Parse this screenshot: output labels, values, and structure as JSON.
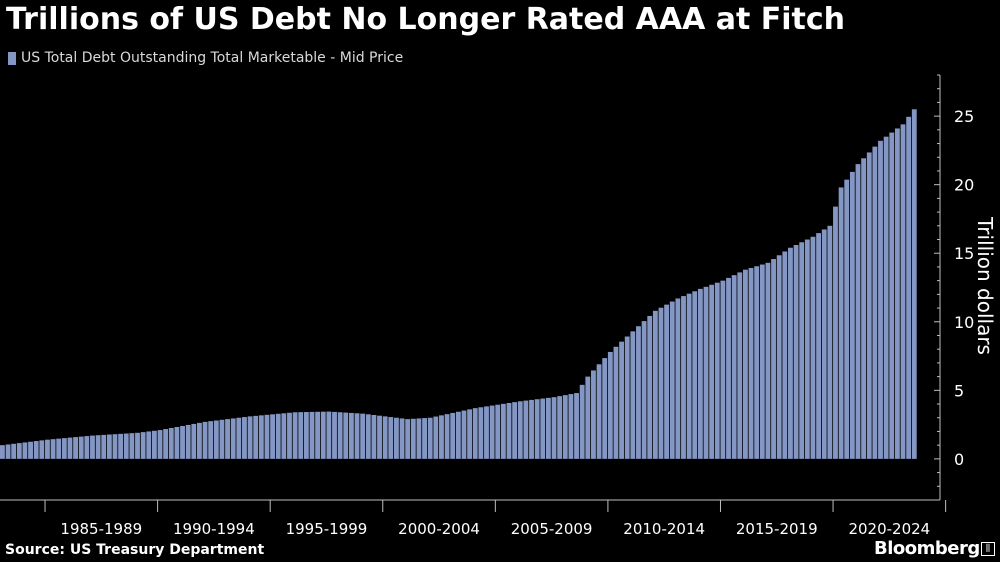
{
  "title": "Trillions of US Debt No Longer Rated AAA at Fitch",
  "source": "Source: US Treasury Department",
  "brand": "Bloomberg",
  "colors": {
    "bar": "#8497c4",
    "axis": "#bfbfbf",
    "background": "#000000",
    "text": "#ffffff"
  },
  "chart_data": {
    "type": "bar",
    "title": "Trillions of US Debt No Longer Rated AAA at Fitch",
    "series": [
      {
        "name": "US Total Debt Outstanding Total Marketable - Mid Price",
        "frequency": "quarterly",
        "start": "1983-Q1",
        "end": "2023-Q2",
        "anchors": [
          {
            "t": 1983.0,
            "v": 1.0
          },
          {
            "t": 1985.0,
            "v": 1.4
          },
          {
            "t": 1987.0,
            "v": 1.7
          },
          {
            "t": 1989.0,
            "v": 1.9
          },
          {
            "t": 1990.0,
            "v": 2.1
          },
          {
            "t": 1992.0,
            "v": 2.7
          },
          {
            "t": 1994.0,
            "v": 3.1
          },
          {
            "t": 1996.0,
            "v": 3.4
          },
          {
            "t": 1997.5,
            "v": 3.45
          },
          {
            "t": 1999.0,
            "v": 3.3
          },
          {
            "t": 2000.0,
            "v": 3.1
          },
          {
            "t": 2001.0,
            "v": 2.9
          },
          {
            "t": 2002.0,
            "v": 3.0
          },
          {
            "t": 2004.0,
            "v": 3.7
          },
          {
            "t": 2006.0,
            "v": 4.2
          },
          {
            "t": 2007.5,
            "v": 4.5
          },
          {
            "t": 2008.5,
            "v": 4.8
          },
          {
            "t": 2009.0,
            "v": 6.0
          },
          {
            "t": 2010.0,
            "v": 7.8
          },
          {
            "t": 2011.0,
            "v": 9.3
          },
          {
            "t": 2012.0,
            "v": 10.8
          },
          {
            "t": 2013.0,
            "v": 11.7
          },
          {
            "t": 2014.0,
            "v": 12.4
          },
          {
            "t": 2015.0,
            "v": 13.0
          },
          {
            "t": 2016.0,
            "v": 13.8
          },
          {
            "t": 2017.0,
            "v": 14.3
          },
          {
            "t": 2018.0,
            "v": 15.4
          },
          {
            "t": 2019.0,
            "v": 16.2
          },
          {
            "t": 2019.75,
            "v": 17.0
          },
          {
            "t": 2020.25,
            "v": 19.8
          },
          {
            "t": 2021.0,
            "v": 21.5
          },
          {
            "t": 2022.0,
            "v": 23.2
          },
          {
            "t": 2023.0,
            "v": 24.4
          },
          {
            "t": 2023.5,
            "v": 25.5
          }
        ]
      }
    ],
    "xlabel": "",
    "ylabel": "Trillion dollars",
    "ylim": [
      -3,
      28
    ],
    "yticks": [
      0,
      5,
      10,
      15,
      20,
      25
    ],
    "xlim": [
      1983.0,
      2024.75
    ],
    "xtick_positions": [
      1985,
      1990,
      1995,
      2000,
      2005,
      2010,
      2015,
      2020,
      2025
    ],
    "xcategory_labels": [
      {
        "label": "1985-1989",
        "from": 1985,
        "to": 1990
      },
      {
        "label": "1990-1994",
        "from": 1990,
        "to": 1995
      },
      {
        "label": "1995-1999",
        "from": 1995,
        "to": 2000
      },
      {
        "label": "2000-2004",
        "from": 2000,
        "to": 2005
      },
      {
        "label": "2005-2009",
        "from": 2005,
        "to": 2010
      },
      {
        "label": "2010-2014",
        "from": 2010,
        "to": 2015
      },
      {
        "label": "2015-2019",
        "from": 2015,
        "to": 2020
      },
      {
        "label": "2020-2024",
        "from": 2020,
        "to": 2025
      }
    ],
    "legend": "top-left",
    "grid": false
  }
}
